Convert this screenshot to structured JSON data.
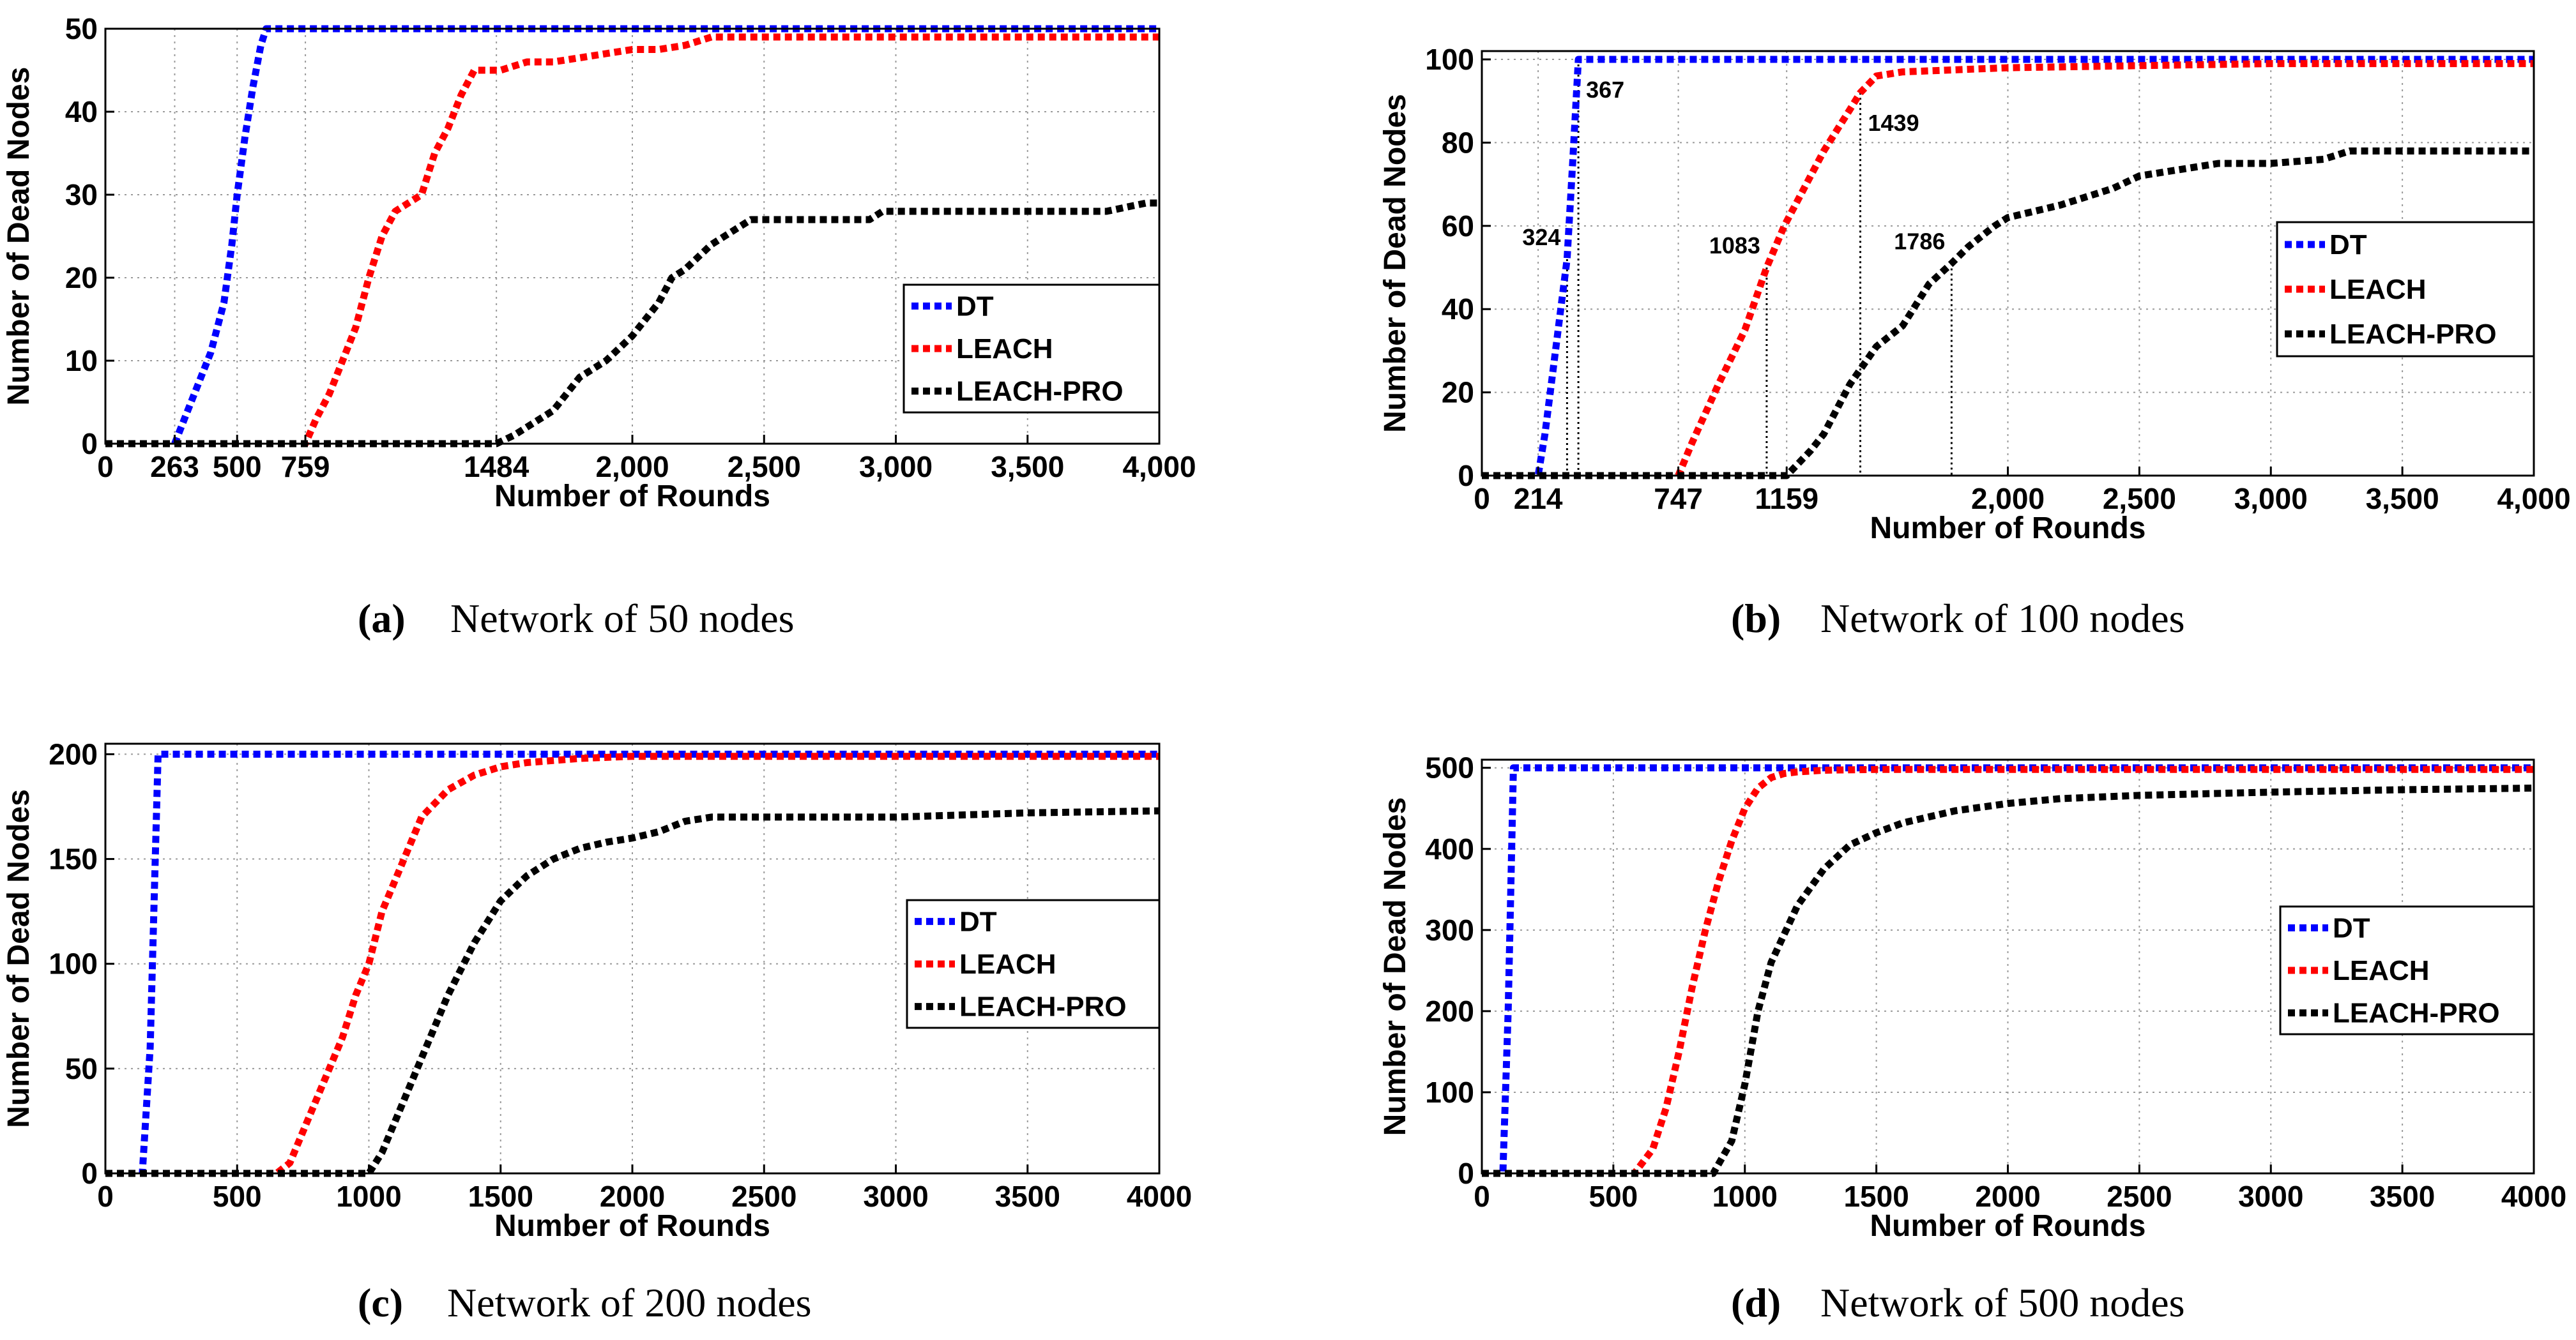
{
  "chart_data": [
    {
      "panel_id": "a",
      "type": "line",
      "title": "",
      "caption_letter": "(a)",
      "caption": "Network of 50 nodes",
      "xlabel": "Number of Rounds",
      "ylabel": "Number of Dead Nodes",
      "xlim": [
        0,
        4000
      ],
      "ylim": [
        0,
        50
      ],
      "grid": true,
      "legend_position": "right",
      "xticks": [
        {
          "value": 0,
          "label": "0"
        },
        {
          "value": 263,
          "label": "263"
        },
        {
          "value": 500,
          "label": "500"
        },
        {
          "value": 759,
          "label": "759"
        },
        {
          "value": 1484,
          "label": "1484"
        },
        {
          "value": 2000,
          "label": "2,000"
        },
        {
          "value": 2500,
          "label": "2,500"
        },
        {
          "value": 3000,
          "label": "3,000"
        },
        {
          "value": 3500,
          "label": "3,500"
        },
        {
          "value": 4000,
          "label": "4,000"
        }
      ],
      "yticks": [
        {
          "value": 0,
          "label": "0"
        },
        {
          "value": 10,
          "label": "10"
        },
        {
          "value": 20,
          "label": "20"
        },
        {
          "value": 30,
          "label": "30"
        },
        {
          "value": 40,
          "label": "40"
        },
        {
          "value": 50,
          "label": "50"
        }
      ],
      "series": [
        {
          "name": "DT",
          "color": "#0000ff",
          "x": [
            0,
            263,
            300,
            350,
            400,
            450,
            480,
            500,
            530,
            560,
            590,
            610,
            4000
          ],
          "y": [
            0,
            0,
            3,
            7,
            11,
            17,
            24,
            30,
            37,
            43,
            48,
            50,
            50
          ]
        },
        {
          "name": "LEACH",
          "color": "#ff0000",
          "x": [
            0,
            759,
            800,
            850,
            900,
            950,
            1000,
            1050,
            1100,
            1150,
            1200,
            1250,
            1300,
            1350,
            1400,
            1500,
            1600,
            1700,
            1800,
            1900,
            2000,
            2100,
            2200,
            2300,
            2500,
            2700,
            3000,
            3500,
            4000
          ],
          "y": [
            0,
            0,
            3,
            6,
            10,
            14,
            20,
            25,
            28,
            29,
            30,
            35,
            38,
            42,
            45,
            45,
            46,
            46,
            46.5,
            47,
            47.5,
            47.5,
            48,
            49,
            49,
            49,
            49,
            49,
            49
          ]
        },
        {
          "name": "LEACH-PRO",
          "color": "#000000",
          "x": [
            0,
            1484,
            1550,
            1600,
            1700,
            1750,
            1800,
            1900,
            2000,
            2100,
            2150,
            2200,
            2300,
            2400,
            2450,
            2500,
            2700,
            2900,
            2950,
            3000,
            3200,
            3500,
            3800,
            3950,
            4000
          ],
          "y": [
            0,
            0,
            1,
            2,
            4,
            6,
            8,
            10,
            13,
            17,
            20,
            21,
            24,
            26,
            27,
            27,
            27,
            27,
            28,
            28,
            28,
            28,
            28,
            29,
            29
          ]
        }
      ],
      "annotations": []
    },
    {
      "panel_id": "b",
      "type": "line",
      "title": "",
      "caption_letter": "(b)",
      "caption": "Network of 100 nodes",
      "xlabel": "Number of Rounds",
      "ylabel": "Number of Dead Nodes",
      "xlim": [
        0,
        4000
      ],
      "ylim": [
        0,
        102
      ],
      "grid": true,
      "legend_position": "right",
      "xticks": [
        {
          "value": 0,
          "label": "0"
        },
        {
          "value": 214,
          "label": "214"
        },
        {
          "value": 747,
          "label": "747"
        },
        {
          "value": 1159,
          "label": "1159"
        },
        {
          "value": 2000,
          "label": "2,000"
        },
        {
          "value": 2500,
          "label": "2,500"
        },
        {
          "value": 3000,
          "label": "3,000"
        },
        {
          "value": 3500,
          "label": "3,500"
        },
        {
          "value": 4000,
          "label": "4,000"
        }
      ],
      "yticks": [
        {
          "value": 0,
          "label": "0"
        },
        {
          "value": 20,
          "label": "20"
        },
        {
          "value": 40,
          "label": "40"
        },
        {
          "value": 60,
          "label": "60"
        },
        {
          "value": 80,
          "label": "80"
        },
        {
          "value": 100,
          "label": "100"
        }
      ],
      "series": [
        {
          "name": "DT",
          "color": "#0000ff",
          "x": [
            0,
            214,
            240,
            270,
            300,
            324,
            345,
            367,
            4000
          ],
          "y": [
            0,
            0,
            10,
            25,
            40,
            52,
            75,
            100,
            100
          ]
        },
        {
          "name": "LEACH",
          "color": "#ff0000",
          "x": [
            0,
            747,
            800,
            900,
            1000,
            1083,
            1150,
            1200,
            1300,
            1400,
            1439,
            1500,
            1600,
            2000,
            2500,
            3000,
            3500,
            4000
          ],
          "y": [
            0,
            0,
            8,
            22,
            35,
            50,
            60,
            66,
            78,
            88,
            92,
            96,
            97,
            98,
            98.5,
            99,
            99,
            99
          ]
        },
        {
          "name": "LEACH-PRO",
          "color": "#000000",
          "x": [
            0,
            1159,
            1250,
            1300,
            1400,
            1500,
            1600,
            1700,
            1786,
            1850,
            1950,
            2000,
            2200,
            2400,
            2500,
            2600,
            2800,
            3000,
            3200,
            3300,
            3500,
            4000
          ],
          "y": [
            0,
            0,
            6,
            10,
            22,
            31,
            36,
            46,
            51,
            55,
            60,
            62,
            65,
            69,
            72,
            73,
            75,
            75,
            76,
            78,
            78,
            78
          ]
        }
      ],
      "annotations": [
        {
          "label": "324",
          "x": 324,
          "y": 52
        },
        {
          "label": "367",
          "x": 367,
          "y": 100
        },
        {
          "label": "1083",
          "x": 1083,
          "y": 50
        },
        {
          "label": "1439",
          "x": 1439,
          "y": 92
        },
        {
          "label": "1786",
          "x": 1786,
          "y": 51
        }
      ]
    },
    {
      "panel_id": "c",
      "type": "line",
      "title": "",
      "caption_letter": "(c)",
      "caption": "Network of 200 nodes",
      "xlabel": "Number of Rounds",
      "ylabel": "Number of Dead Nodes",
      "xlim": [
        0,
        4000
      ],
      "ylim": [
        0,
        205
      ],
      "grid": true,
      "legend_position": "right",
      "xticks": [
        {
          "value": 0,
          "label": "0"
        },
        {
          "value": 500,
          "label": "500"
        },
        {
          "value": 1000,
          "label": "1000"
        },
        {
          "value": 1500,
          "label": "1500"
        },
        {
          "value": 2000,
          "label": "2000"
        },
        {
          "value": 2500,
          "label": "2500"
        },
        {
          "value": 3000,
          "label": "3000"
        },
        {
          "value": 3500,
          "label": "3500"
        },
        {
          "value": 4000,
          "label": "4000"
        }
      ],
      "yticks": [
        {
          "value": 0,
          "label": "0"
        },
        {
          "value": 50,
          "label": "50"
        },
        {
          "value": 100,
          "label": "100"
        },
        {
          "value": 150,
          "label": "150"
        },
        {
          "value": 200,
          "label": "200"
        }
      ],
      "series": [
        {
          "name": "DT",
          "color": "#0000ff",
          "x": [
            0,
            140,
            170,
            200,
            4000
          ],
          "y": [
            0,
            0,
            60,
            200,
            200
          ]
        },
        {
          "name": "LEACH",
          "color": "#ff0000",
          "x": [
            0,
            650,
            700,
            800,
            900,
            950,
            1000,
            1050,
            1100,
            1200,
            1300,
            1400,
            1500,
            1600,
            1800,
            2000,
            2500,
            3000,
            4000
          ],
          "y": [
            0,
            0,
            5,
            35,
            65,
            85,
            100,
            125,
            140,
            170,
            183,
            190,
            194,
            196,
            198,
            199,
            199,
            199,
            199
          ]
        },
        {
          "name": "LEACH-PRO",
          "color": "#000000",
          "x": [
            0,
            1000,
            1050,
            1100,
            1200,
            1300,
            1400,
            1500,
            1600,
            1700,
            1800,
            1900,
            2000,
            2100,
            2200,
            2300,
            2500,
            3000,
            3500,
            4000
          ],
          "y": [
            0,
            0,
            10,
            25,
            55,
            85,
            110,
            130,
            142,
            150,
            155,
            158,
            160,
            163,
            168,
            170,
            170,
            170,
            172,
            173
          ]
        }
      ],
      "annotations": []
    },
    {
      "panel_id": "d",
      "type": "line",
      "title": "",
      "caption_letter": "(d)",
      "caption": "Network of 500 nodes",
      "xlabel": "Number of Rounds",
      "ylabel": "Number of Dead Nodes",
      "xlim": [
        0,
        4000
      ],
      "ylim": [
        0,
        510
      ],
      "grid": true,
      "legend_position": "right",
      "xticks": [
        {
          "value": 0,
          "label": "0"
        },
        {
          "value": 500,
          "label": "500"
        },
        {
          "value": 1000,
          "label": "1000"
        },
        {
          "value": 1500,
          "label": "1500"
        },
        {
          "value": 2000,
          "label": "2000"
        },
        {
          "value": 2500,
          "label": "2500"
        },
        {
          "value": 3000,
          "label": "3000"
        },
        {
          "value": 3500,
          "label": "3500"
        },
        {
          "value": 4000,
          "label": "4000"
        }
      ],
      "yticks": [
        {
          "value": 0,
          "label": "0"
        },
        {
          "value": 100,
          "label": "100"
        },
        {
          "value": 200,
          "label": "200"
        },
        {
          "value": 300,
          "label": "300"
        },
        {
          "value": 400,
          "label": "400"
        },
        {
          "value": 500,
          "label": "500"
        }
      ],
      "series": [
        {
          "name": "DT",
          "color": "#0000ff",
          "x": [
            0,
            80,
            100,
            120,
            4000
          ],
          "y": [
            0,
            0,
            200,
            500,
            500
          ]
        },
        {
          "name": "LEACH",
          "color": "#ff0000",
          "x": [
            0,
            580,
            650,
            700,
            750,
            800,
            850,
            900,
            950,
            1000,
            1050,
            1100,
            1150,
            1200,
            1300,
            1500,
            2000,
            4000
          ],
          "y": [
            0,
            0,
            30,
            80,
            150,
            230,
            300,
            360,
            410,
            450,
            475,
            488,
            493,
            495,
            497,
            498,
            498,
            498
          ]
        },
        {
          "name": "LEACH-PRO",
          "color": "#000000",
          "x": [
            0,
            880,
            950,
            1000,
            1050,
            1100,
            1200,
            1300,
            1400,
            1500,
            1600,
            1800,
            2000,
            2200,
            2500,
            3000,
            3500,
            4000
          ],
          "y": [
            0,
            0,
            40,
            110,
            200,
            260,
            330,
            375,
            405,
            420,
            432,
            447,
            456,
            462,
            466,
            470,
            473,
            475
          ]
        }
      ],
      "annotations": []
    }
  ]
}
